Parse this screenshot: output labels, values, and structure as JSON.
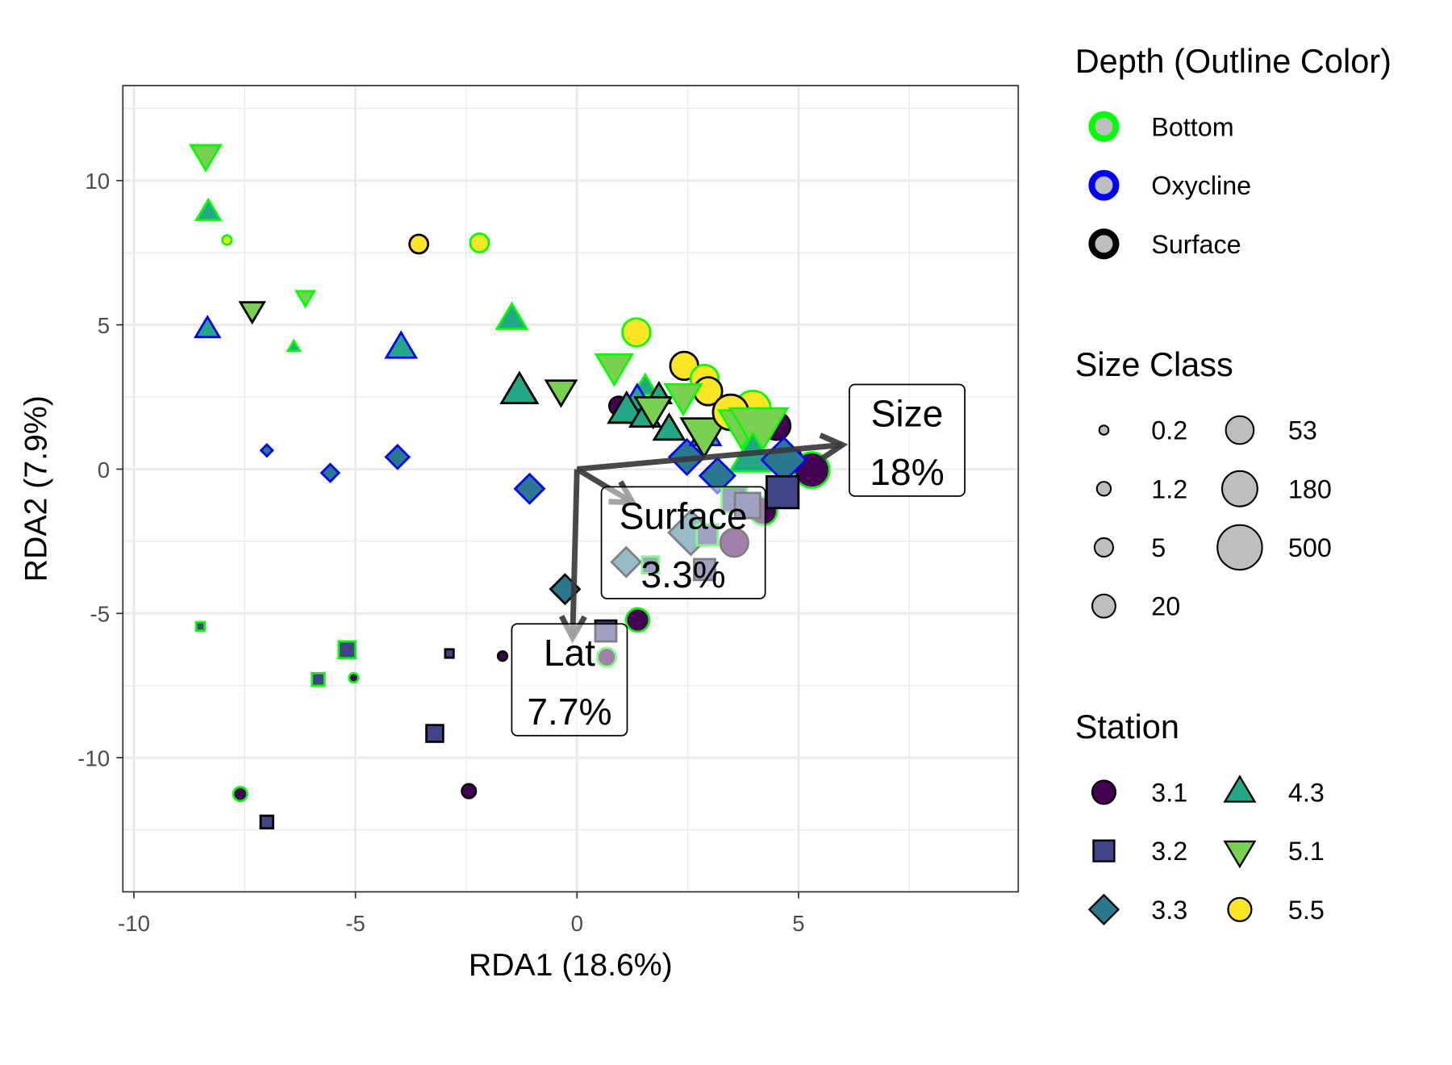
{
  "chart_data": {
    "type": "scatter",
    "xlabel": "RDA1 (18.6%)",
    "ylabel": "RDA2 (7.9%)",
    "xlim": [
      -10.25,
      9.96
    ],
    "ylim": [
      -14.65,
      13.29
    ],
    "x_ticks": [
      -10,
      -5,
      0,
      5
    ],
    "y_ticks": [
      10,
      5,
      0,
      -5,
      -10
    ],
    "x_tick_labels": [
      "-10",
      "-5",
      "0",
      "5"
    ],
    "y_tick_labels": [
      "10",
      "5",
      "0",
      "-5",
      "-10"
    ],
    "grid": true,
    "legend_position": "right",
    "station_colors": {
      "3.1": "#440154",
      "3.2": "#414487",
      "3.3": "#2A788E",
      "4.3": "#22A884",
      "5.1": "#7AD151",
      "5.5": "#FDE725"
    },
    "station_shapes": {
      "3.1": "circle",
      "3.2": "square",
      "3.3": "diamond",
      "4.3": "triangle-up",
      "5.1": "triangle-down",
      "5.5": "circle"
    },
    "depth_colors": {
      "Bottom": "#00FF00",
      "Oxycline": "#0000FF",
      "Surface": "#000000"
    },
    "points": [
      {
        "x": -8.38,
        "y": 10.9,
        "station": "5.1",
        "depth": "Bottom",
        "size": 20
      },
      {
        "x": -8.32,
        "y": 8.9,
        "station": "4.3",
        "depth": "Bottom",
        "size": 5
      },
      {
        "x": -7.9,
        "y": 7.94,
        "station": "5.5",
        "depth": "Bottom",
        "size": 0.2
      },
      {
        "x": -3.57,
        "y": 7.8,
        "station": "5.5",
        "depth": "Surface",
        "size": 5
      },
      {
        "x": -2.2,
        "y": 7.84,
        "station": "5.5",
        "depth": "Bottom",
        "size": 5
      },
      {
        "x": -7.33,
        "y": 5.52,
        "station": "5.1",
        "depth": "Surface",
        "size": 5
      },
      {
        "x": -6.13,
        "y": 5.97,
        "station": "5.1",
        "depth": "Bottom",
        "size": 1.2
      },
      {
        "x": -8.34,
        "y": 4.84,
        "station": "4.3",
        "depth": "Oxycline",
        "size": 5
      },
      {
        "x": -6.39,
        "y": 4.23,
        "station": "4.3",
        "depth": "Bottom",
        "size": 0.2
      },
      {
        "x": -3.97,
        "y": 4.19,
        "station": "4.3",
        "depth": "Oxycline",
        "size": 20
      },
      {
        "x": -1.47,
        "y": 5.19,
        "station": "4.3",
        "depth": "Bottom",
        "size": 20
      },
      {
        "x": -1.3,
        "y": 2.68,
        "station": "4.3",
        "depth": "Surface",
        "size": 53
      },
      {
        "x": -0.36,
        "y": 2.74,
        "station": "5.1",
        "depth": "Surface",
        "size": 20
      },
      {
        "x": 1.34,
        "y": 4.74,
        "station": "5.5",
        "depth": "Bottom",
        "size": 53
      },
      {
        "x": 0.84,
        "y": 3.58,
        "station": "5.1",
        "depth": "Bottom",
        "size": 53
      },
      {
        "x": 2.42,
        "y": 3.58,
        "station": "5.5",
        "depth": "Surface",
        "size": 53
      },
      {
        "x": -7.0,
        "y": 0.65,
        "station": "3.3",
        "depth": "Oxycline",
        "size": 0.2
      },
      {
        "x": -5.57,
        "y": -0.13,
        "station": "3.3",
        "depth": "Oxycline",
        "size": 1.2
      },
      {
        "x": -4.05,
        "y": 0.42,
        "station": "3.3",
        "depth": "Oxycline",
        "size": 5
      },
      {
        "x": -1.07,
        "y": -0.68,
        "station": "3.3",
        "depth": "Oxycline",
        "size": 20
      },
      {
        "x": -0.27,
        "y": -4.16,
        "station": "3.3",
        "depth": "Surface",
        "size": 20
      },
      {
        "x": 1.37,
        "y": -5.23,
        "station": "3.1",
        "depth": "Bottom",
        "size": 20
      },
      {
        "x": 0.65,
        "y": -5.61,
        "station": "3.2",
        "depth": "Surface",
        "size": 20
      },
      {
        "x": 0.67,
        "y": -6.52,
        "station": "3.1",
        "depth": "Bottom",
        "size": 5
      },
      {
        "x": -8.5,
        "y": -5.45,
        "station": "3.2",
        "depth": "Bottom",
        "size": 0.2
      },
      {
        "x": -5.19,
        "y": -6.26,
        "station": "3.2",
        "depth": "Bottom",
        "size": 5
      },
      {
        "x": -5.84,
        "y": -7.29,
        "station": "3.2",
        "depth": "Bottom",
        "size": 1.2
      },
      {
        "x": -5.04,
        "y": -7.23,
        "station": "3.1",
        "depth": "Bottom",
        "size": 0.2
      },
      {
        "x": -2.88,
        "y": -6.39,
        "station": "3.2",
        "depth": "Surface",
        "size": 0.2
      },
      {
        "x": -1.68,
        "y": -6.48,
        "station": "3.1",
        "depth": "Surface",
        "size": 0.2
      },
      {
        "x": -3.21,
        "y": -9.16,
        "station": "3.2",
        "depth": "Surface",
        "size": 5
      },
      {
        "x": -7.6,
        "y": -11.26,
        "station": "3.1",
        "depth": "Bottom",
        "size": 1.2
      },
      {
        "x": -2.44,
        "y": -11.16,
        "station": "3.1",
        "depth": "Surface",
        "size": 1.2
      },
      {
        "x": -7.0,
        "y": -12.23,
        "station": "3.2",
        "depth": "Surface",
        "size": 1.2
      },
      {
        "x": 0.94,
        "y": 2.19,
        "station": "3.1",
        "depth": "Surface",
        "size": 5
      },
      {
        "x": 1.54,
        "y": 2.84,
        "station": "4.3",
        "depth": "Bottom",
        "size": 5
      },
      {
        "x": 1.36,
        "y": 2.38,
        "station": "4.3",
        "depth": "Oxycline",
        "size": 20
      },
      {
        "x": 1.12,
        "y": 2.0,
        "station": "4.3",
        "depth": "Surface",
        "size": 53
      },
      {
        "x": 1.54,
        "y": 1.8,
        "station": "4.3",
        "depth": "Surface",
        "size": 20
      },
      {
        "x": 1.85,
        "y": 2.55,
        "station": "4.3",
        "depth": "Surface",
        "size": 5
      },
      {
        "x": 1.72,
        "y": 2.1,
        "station": "5.1",
        "depth": "Surface",
        "size": 53
      },
      {
        "x": 2.08,
        "y": 1.35,
        "station": "4.3",
        "depth": "Surface",
        "size": 20
      },
      {
        "x": 2.48,
        "y": 0.42,
        "station": "3.3",
        "depth": "Oxycline",
        "size": 53
      },
      {
        "x": 2.9,
        "y": 1.16,
        "station": "4.3",
        "depth": "Oxycline",
        "size": 20
      },
      {
        "x": 2.88,
        "y": 3.13,
        "station": "5.5",
        "depth": "Bottom",
        "size": 53
      },
      {
        "x": 2.96,
        "y": 2.7,
        "station": "5.5",
        "depth": "Surface",
        "size": 53
      },
      {
        "x": 2.4,
        "y": 2.55,
        "station": "5.1",
        "depth": "Bottom",
        "size": 53
      },
      {
        "x": 2.87,
        "y": 1.26,
        "station": "5.1",
        "depth": "Surface",
        "size": 180
      },
      {
        "x": 3.97,
        "y": 2.1,
        "station": "5.5",
        "depth": "Bottom",
        "size": 180
      },
      {
        "x": 4.5,
        "y": 1.5,
        "station": "3.1",
        "depth": "Surface",
        "size": 53
      },
      {
        "x": 3.47,
        "y": 1.97,
        "station": "5.5",
        "depth": "Surface",
        "size": 180
      },
      {
        "x": 3.72,
        "y": 1.54,
        "station": "5.1",
        "depth": "Bottom",
        "size": 180
      },
      {
        "x": 4.1,
        "y": 1.48,
        "station": "5.1",
        "depth": "Bottom",
        "size": 500
      },
      {
        "x": 3.97,
        "y": 0.42,
        "station": "4.3",
        "depth": "Bottom",
        "size": 180
      },
      {
        "x": 5.0,
        "y": 0.45,
        "station": "4.3",
        "depth": "Surface",
        "size": 0.2
      },
      {
        "x": 5.3,
        "y": -0.03,
        "station": "3.1",
        "depth": "Bottom",
        "size": 180
      },
      {
        "x": 4.67,
        "y": 0.32,
        "station": "3.3",
        "depth": "Oxycline",
        "size": 180
      },
      {
        "x": 3.17,
        "y": -0.23,
        "station": "3.3",
        "depth": "Oxycline",
        "size": 53
      },
      {
        "x": 4.2,
        "y": -1.45,
        "station": "3.1",
        "depth": "Bottom",
        "size": 53
      },
      {
        "x": 4.64,
        "y": -0.8,
        "station": "3.2",
        "depth": "Surface",
        "size": 180
      },
      {
        "x": 3.55,
        "y": -1.06,
        "station": "3.2",
        "depth": "Bottom",
        "size": 53
      },
      {
        "x": 3.85,
        "y": -1.26,
        "station": "3.2",
        "depth": "Surface",
        "size": 53
      },
      {
        "x": 2.57,
        "y": -2.2,
        "station": "3.3",
        "depth": "Surface",
        "size": 180
      },
      {
        "x": 2.94,
        "y": -2.28,
        "station": "3.2",
        "depth": "Bottom",
        "size": 20
      },
      {
        "x": 3.55,
        "y": -2.55,
        "station": "3.1",
        "depth": "Surface",
        "size": 53
      },
      {
        "x": 1.11,
        "y": -3.22,
        "station": "3.3",
        "depth": "Surface",
        "size": 20
      },
      {
        "x": 1.66,
        "y": -3.32,
        "station": "3.2",
        "depth": "Bottom",
        "size": 5
      },
      {
        "x": 2.88,
        "y": -3.48,
        "station": "3.2",
        "depth": "Surface",
        "size": 20
      }
    ],
    "arrows": [
      {
        "name": "Size",
        "x": 5.99,
        "y": 0.84,
        "label": "Size",
        "pct": "18%",
        "lx": 7.45,
        "ly": 1.0
      },
      {
        "name": "Surface",
        "x": 1.26,
        "y": -1.16,
        "label": "Surface",
        "pct": "3.3%",
        "lx": 2.4,
        "ly": -2.55
      },
      {
        "name": "Lat",
        "x": -0.1,
        "y": -5.84,
        "label": "Lat",
        "pct": "7.7%",
        "lx": -0.17,
        "ly": -7.3
      }
    ]
  },
  "legend": {
    "depth": {
      "title": "Depth (Outline Color)",
      "items": [
        {
          "label": "Bottom",
          "color": "#00FF00"
        },
        {
          "label": "Oxycline",
          "color": "#0000FF"
        },
        {
          "label": "Surface",
          "color": "#000000"
        }
      ]
    },
    "size": {
      "title": "Size Class",
      "items": [
        "0.2",
        "1.2",
        "5",
        "20",
        "53",
        "180",
        "500"
      ]
    },
    "station": {
      "title": "Station",
      "items": [
        "3.1",
        "3.2",
        "3.3",
        "4.3",
        "5.1",
        "5.5"
      ]
    }
  }
}
